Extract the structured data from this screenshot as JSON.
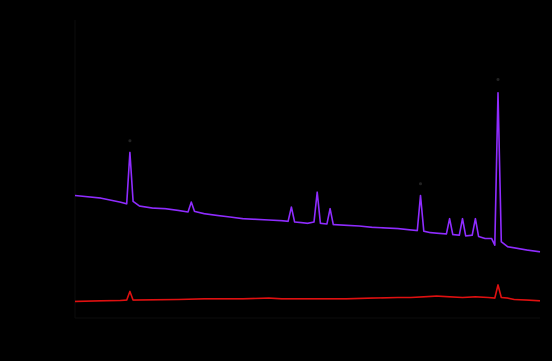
{
  "chart_data": {
    "type": "line",
    "title": "",
    "xlabel": "",
    "ylabel": "",
    "xlim": [
      8,
      80
    ],
    "ylim": [
      0,
      900
    ],
    "grid": false,
    "legend_position": "upper-center",
    "series": [
      {
        "name": "",
        "color": "#8f2cff",
        "x": [
          8,
          12,
          15,
          16,
          16.5,
          17,
          18,
          20,
          22,
          24,
          25.5,
          26,
          26.5,
          28,
          30,
          32,
          34,
          36,
          38,
          40,
          41,
          41.5,
          42,
          43,
          44,
          45,
          45.5,
          46,
          47,
          47.5,
          48,
          50,
          52,
          54,
          56,
          58,
          60,
          61,
          61.5,
          62,
          63,
          64,
          65.5,
          66,
          66.5,
          67.5,
          68,
          68.5,
          69.5,
          70,
          70.5,
          71.5,
          72.5,
          73,
          73.5,
          74,
          75,
          76,
          78,
          80
        ],
        "y": [
          370,
          362,
          350,
          345,
          500,
          352,
          338,
          332,
          330,
          325,
          320,
          350,
          322,
          315,
          310,
          305,
          300,
          298,
          296,
          294,
          292,
          335,
          290,
          288,
          286,
          290,
          380,
          286,
          284,
          330,
          282,
          280,
          278,
          274,
          272,
          270,
          266,
          264,
          370,
          262,
          258,
          256,
          254,
          300,
          252,
          250,
          300,
          248,
          250,
          300,
          246,
          240,
          240,
          220,
          680,
          230,
          215,
          212,
          205,
          200
        ]
      },
      {
        "name": "",
        "color": "#e01010",
        "x": [
          8,
          12,
          15,
          16,
          16.5,
          17,
          20,
          24,
          28,
          30,
          34,
          38,
          40,
          45,
          50,
          54,
          58,
          60,
          62,
          64,
          66,
          68,
          70,
          72,
          73,
          73.5,
          74,
          75,
          76,
          78,
          80
        ],
        "y": [
          50,
          52,
          53,
          54,
          80,
          54,
          55,
          56,
          58,
          58,
          58,
          60,
          58,
          58,
          58,
          60,
          62,
          62,
          64,
          66,
          64,
          62,
          64,
          62,
          60,
          100,
          62,
          60,
          56,
          54,
          52
        ]
      }
    ],
    "peak_markers": [
      {
        "x": 16.5,
        "y": 505
      },
      {
        "x": 61.5,
        "y": 375
      },
      {
        "x": 73.5,
        "y": 690
      }
    ]
  }
}
